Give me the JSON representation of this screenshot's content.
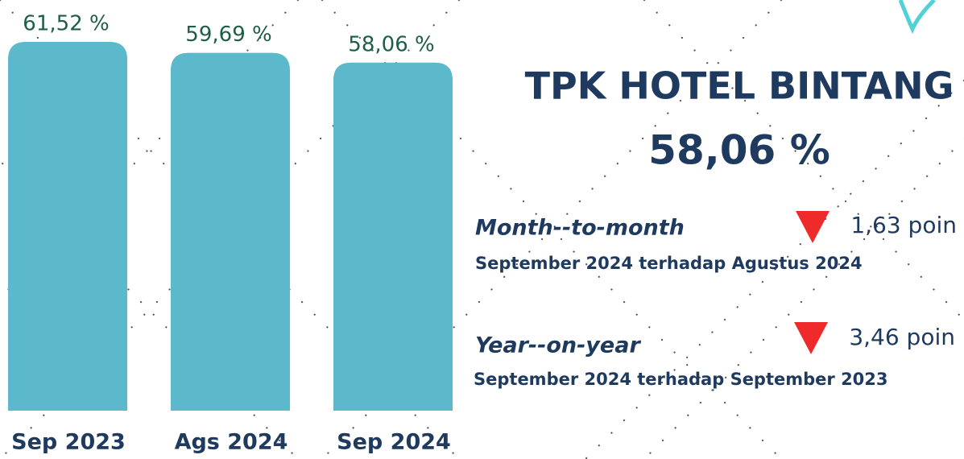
{
  "chart_data": {
    "type": "bar",
    "categories": [
      "Sep 2023",
      "Ags 2024",
      "Sep 2024"
    ],
    "values": [
      61.52,
      59.69,
      58.06
    ],
    "value_labels": [
      "61,52 %",
      "59,69 %",
      "58,06 %"
    ],
    "color": "#5bb9cb"
  },
  "summary": {
    "title": "TPK HOTEL BINTANG",
    "value": "58,06 %",
    "comparisons": [
      {
        "label": "Month--to-month",
        "change": "1,63 poin",
        "note": "September 2024 terhadap Agustus 2024"
      },
      {
        "label": "Year--on-year",
        "change": "3,46 poin",
        "note": "September 2024 terhadap September 2023"
      }
    ]
  }
}
